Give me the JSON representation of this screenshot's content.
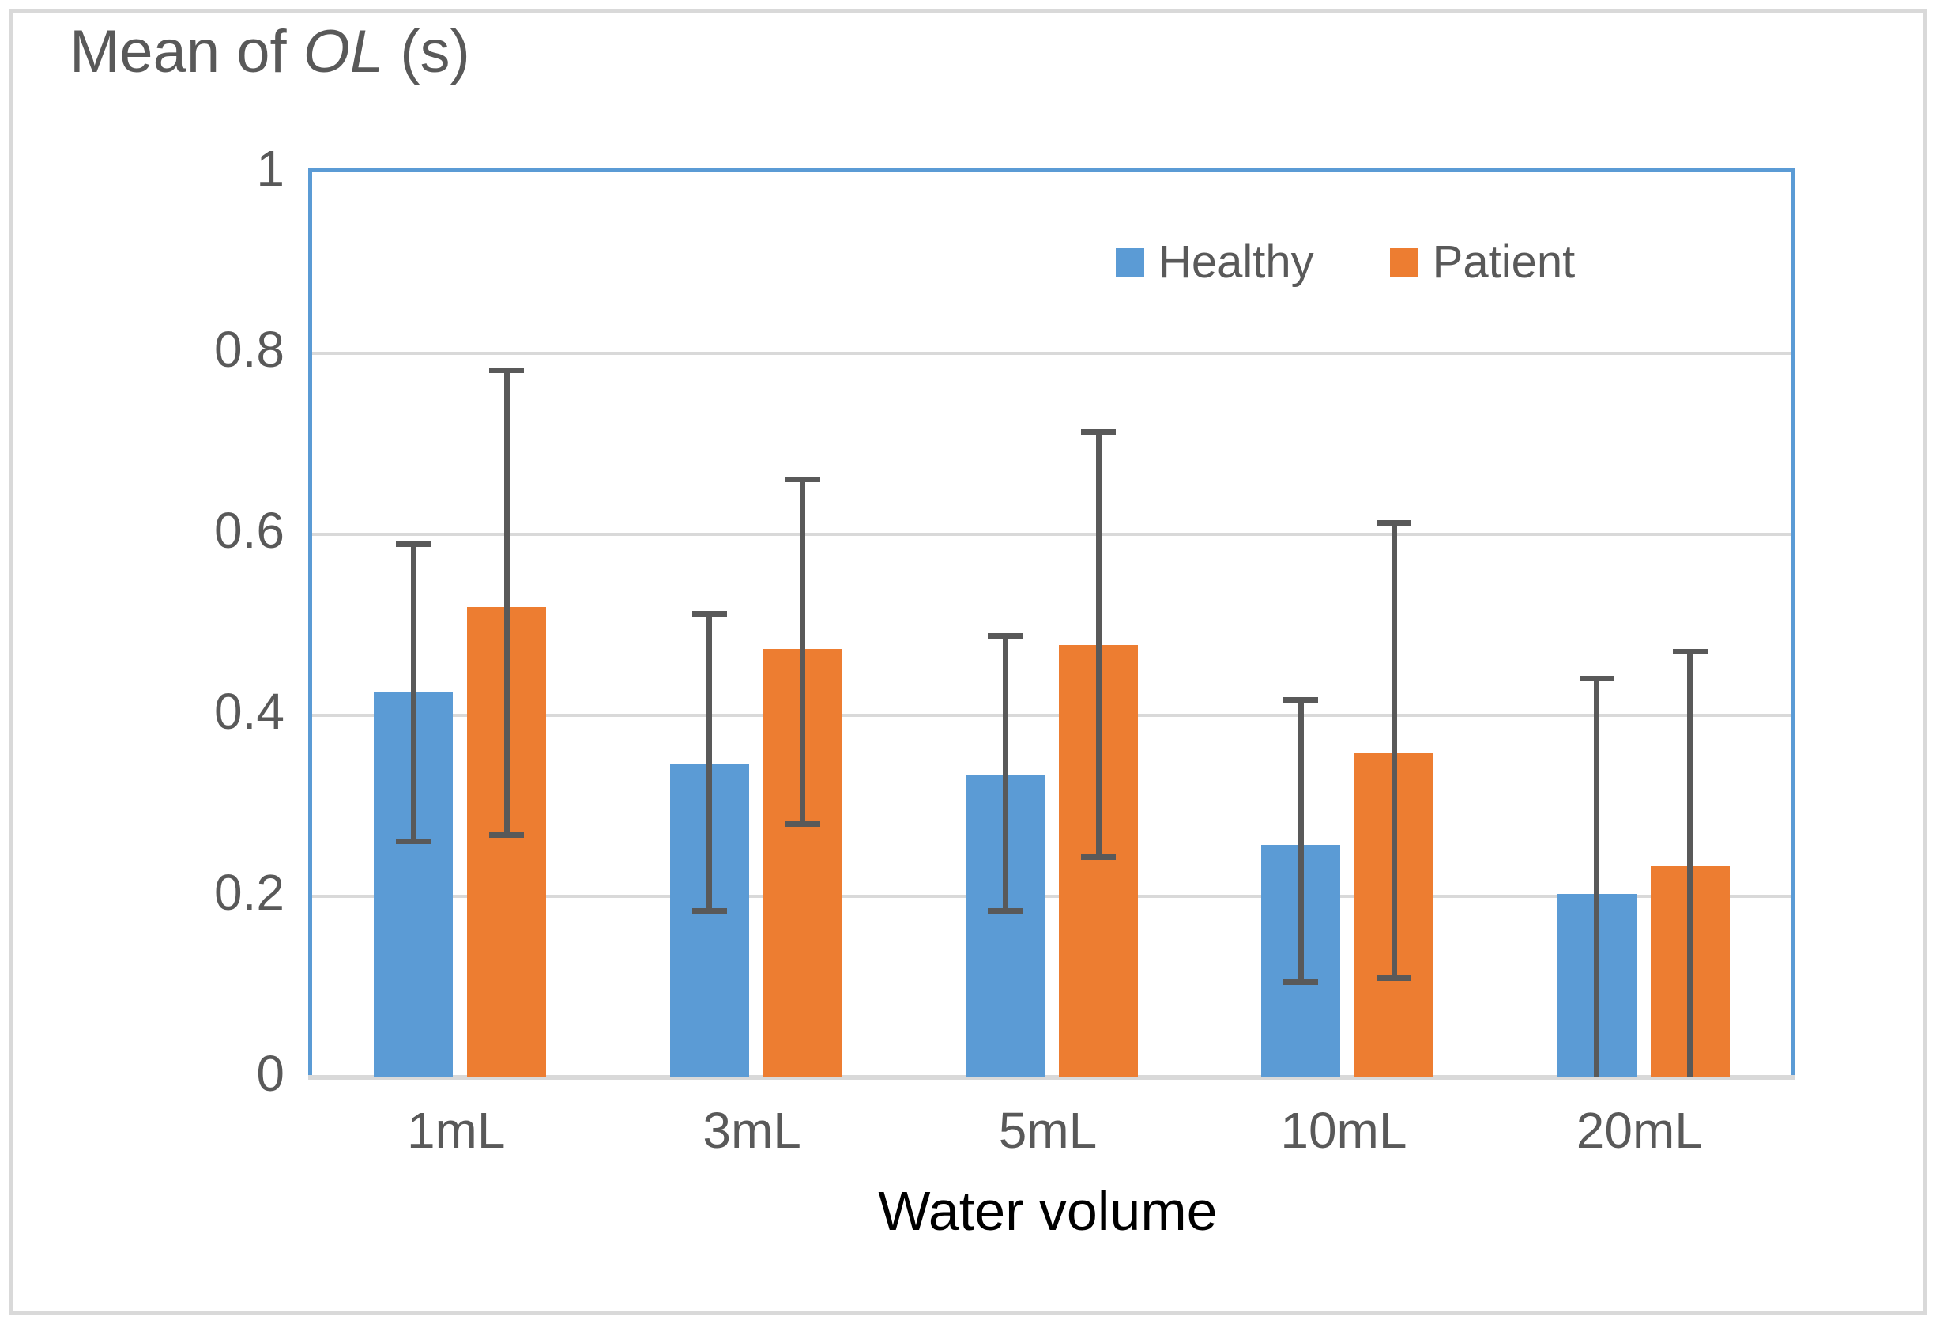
{
  "figure": {
    "title_prefix": "Mean of ",
    "title_italic": "OL",
    "title_suffix": " (s)"
  },
  "chart_data": {
    "type": "bar",
    "title": "Mean of OL (s)",
    "xlabel": "Water volume",
    "ylabel": "",
    "ylim": [
      0,
      1
    ],
    "grid": "horizontal",
    "legend_position": "top-right-inside",
    "y_ticks": [
      0,
      0.2,
      0.4,
      0.6,
      0.8,
      1
    ],
    "y_tick_labels": [
      "0",
      "0.2",
      "0.4",
      "0.6",
      "0.8",
      "1"
    ],
    "categories": [
      "1mL",
      "3mL",
      "5mL",
      "10mL",
      "20mL"
    ],
    "series": [
      {
        "name": "Healthy",
        "color": "#5B9BD5",
        "values": [
          0.425,
          0.347,
          0.334,
          0.257,
          0.203
        ],
        "error_low": [
          0.261,
          0.184,
          0.184,
          0.105,
          0.0
        ],
        "error_high": [
          0.589,
          0.512,
          0.488,
          0.417,
          0.441
        ]
      },
      {
        "name": "Patient",
        "color": "#ED7D31",
        "values": [
          0.52,
          0.473,
          0.478,
          0.358,
          0.233
        ],
        "error_low": [
          0.268,
          0.28,
          0.243,
          0.11,
          0.0
        ],
        "error_high": [
          0.781,
          0.661,
          0.713,
          0.613,
          0.47
        ]
      }
    ],
    "colors": {
      "grid": "#D9D9D9",
      "plot_border": "#5B9BD5",
      "error_bar": "#595959",
      "axis_text": "#595959",
      "title_text": "#595959",
      "xlabel_text": "#000000",
      "outer_border": "#D9D9D9"
    }
  }
}
